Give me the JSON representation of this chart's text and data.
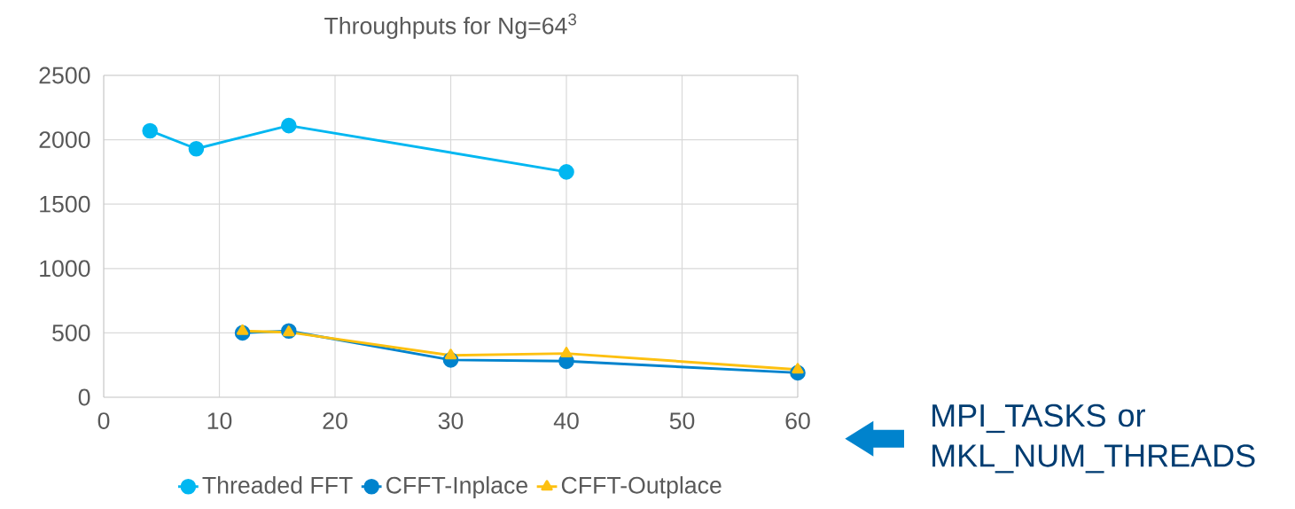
{
  "chart_data": {
    "type": "line",
    "title": "Throughputs for Ng=64$^{3}$",
    "xlabel": "MPI_TASKS or MKL_NUM_THREADS",
    "xlim": [
      0,
      60
    ],
    "xticks": [
      0,
      10,
      20,
      30,
      40,
      50,
      60
    ],
    "ylim": [
      0,
      2500
    ],
    "yticks": [
      0,
      500,
      1000,
      1500,
      2000,
      2500
    ],
    "grid": true,
    "legend": "bottom",
    "line_style": "solid",
    "series": [
      {
        "name": "Threaded FFT",
        "color": "#00b7f1",
        "marker": "circle",
        "x": [
          4,
          8,
          16,
          40
        ],
        "values": [
          2070,
          1930,
          2110,
          1750
        ]
      },
      {
        "name": "CFFT-Inplace",
        "color": "#0083cd",
        "marker": "circle",
        "x": [
          12,
          16,
          30,
          40,
          60
        ],
        "values": [
          500,
          515,
          290,
          280,
          190
        ]
      },
      {
        "name": "CFFT-Outplace",
        "color": "#fdc010",
        "marker": "triangle",
        "x": [
          12,
          16,
          30,
          40,
          60
        ],
        "values": [
          515,
          505,
          325,
          340,
          215
        ]
      }
    ]
  }
}
